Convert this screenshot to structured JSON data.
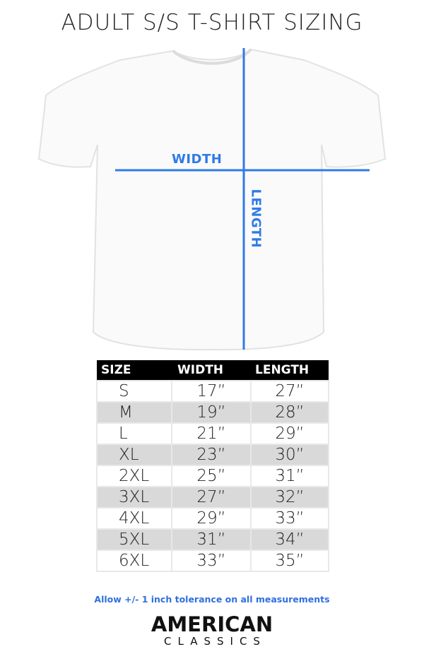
{
  "title": "ADULT S/S T-SHIRT SIZING",
  "diagram": {
    "width_label": "WIDTH",
    "length_label": "LENGTH",
    "line_color": "#2f7be8"
  },
  "table": {
    "headers": [
      "SIZE",
      "WIDTH",
      "LENGTH"
    ],
    "rows": [
      {
        "size": "S",
        "width": "17”",
        "length": "27”"
      },
      {
        "size": "M",
        "width": "19”",
        "length": "28”"
      },
      {
        "size": "L",
        "width": "21”",
        "length": "29”"
      },
      {
        "size": "XL",
        "width": "23”",
        "length": "30”"
      },
      {
        "size": "2XL",
        "width": "25”",
        "length": "31”"
      },
      {
        "size": "3XL",
        "width": "27”",
        "length": "32”"
      },
      {
        "size": "4XL",
        "width": "29”",
        "length": "33”"
      },
      {
        "size": "5XL",
        "width": "31”",
        "length": "34”"
      },
      {
        "size": "6XL",
        "width": "33”",
        "length": "35”"
      }
    ]
  },
  "note": "Allow +/- 1 inch tolerance on all measurements",
  "brand": {
    "line1": "AMERICAN",
    "line2": "CLASSICS"
  }
}
